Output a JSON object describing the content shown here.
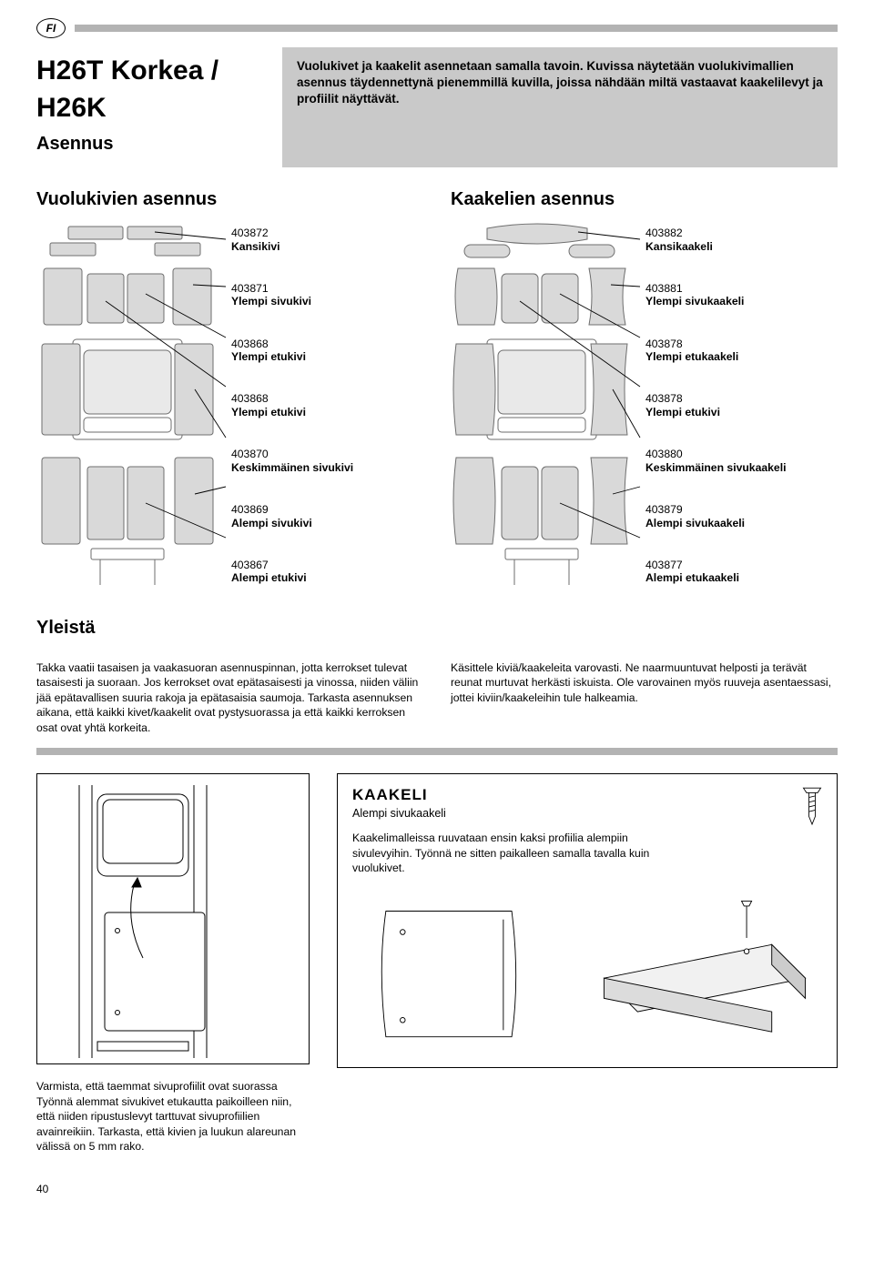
{
  "header": {
    "badge": "FI"
  },
  "title": "H26T Korkea / H26K",
  "subtitle": "Asennus",
  "intro_box": "Vuolukivet ja kaakelit asennetaan samalla tavoin. Kuvissa näytetään vuolukivimallien asennus täydennettynä pienemmillä kuvilla, joissa nähdään miltä vastaavat kaakelilevyt ja profiilit näyttävät.",
  "left_heading": "Vuolukivien asennus",
  "right_heading": "Kaakelien asennus",
  "left_labels": [
    {
      "pn": "403872",
      "nm": "Kansikivi"
    },
    {
      "pn": "403871",
      "nm": "Ylempi sivukivi"
    },
    {
      "pn": "403868",
      "nm": "Ylempi etukivi"
    },
    {
      "pn": "403868",
      "nm": "Ylempi etukivi"
    },
    {
      "pn": "403870",
      "nm": "Keskimmäinen sivukivi"
    },
    {
      "pn": "403869",
      "nm": "Alempi sivukivi"
    },
    {
      "pn": "403867",
      "nm": "Alempi etukivi"
    }
  ],
  "right_labels": [
    {
      "pn": "403882",
      "nm": "Kansikaakeli"
    },
    {
      "pn": "403881",
      "nm": "Ylempi sivukaakeli"
    },
    {
      "pn": "403878",
      "nm": "Ylempi etukaakeli"
    },
    {
      "pn": "403878",
      "nm": "Ylempi etukivi"
    },
    {
      "pn": "403880",
      "nm": "Keskimmäinen sivukaakeli"
    },
    {
      "pn": "403879",
      "nm": "Alempi sivukaakeli"
    },
    {
      "pn": "403877",
      "nm": "Alempi etukaakeli"
    }
  ],
  "yleista": {
    "heading": "Yleistä",
    "p1": "Takka vaatii tasaisen ja vaakasuoran asennuspinnan, jotta kerrokset tulevat tasaisesti ja suoraan. Jos kerrokset ovat epätasaisesti ja vinossa, niiden väliin jää epätavallisen suuria rakoja ja epätasaisia saumoja. Tarkasta asennuksen aikana, että kaikki kivet/kaakelit ovat pystysuorassa ja että kaikki kerroksen osat ovat yhtä korkeita.",
    "p2": "Käsittele kiviä/kaakeleita varovasti. Ne naarmuuntuvat helposti ja terävät reunat murtuvat herkästi iskuista. Ole varovainen myös ruuveja asentaessasi, jottei kiviin/kaakeleihin tule halkeamia."
  },
  "kaakeli": {
    "heading": "KAAKELI",
    "sub": "Alempi sivukaakeli",
    "text": "Kaakelimalleissa ruuvataan ensin kaksi profiilia alempiin sivulevyihin. Työnnä ne sitten paikalleen samalla tavalla kuin vuolukivet."
  },
  "caption_below": "Varmista, että taemmat sivuprofiilit ovat suorassa Työnnä alemmat sivukivet etukautta paikoilleen niin, että niiden ripustuslevyt tarttuvat sivuprofiilien avainreikiin. Tarkasta, että kivien ja luukun alareunan välissä on 5 mm rako.",
  "page_number": "40",
  "colors": {
    "bar": "#b3b3b3",
    "box": "#c9c9c9",
    "line": "#000000",
    "panel": "#d9d9d9",
    "panel_stroke": "#6e6e6e",
    "white": "#ffffff"
  }
}
